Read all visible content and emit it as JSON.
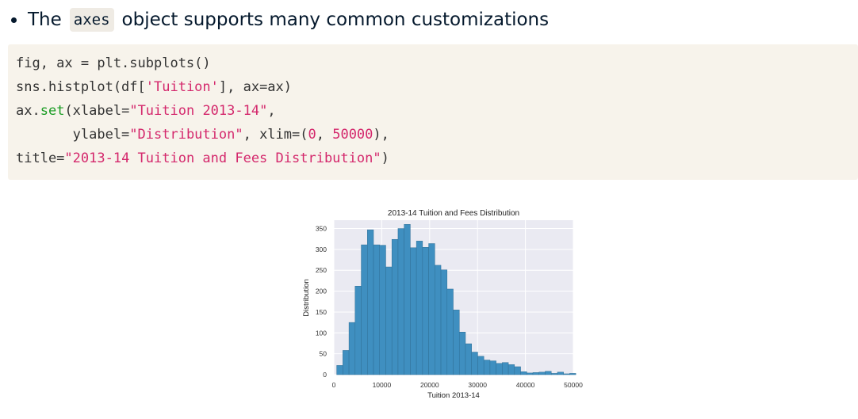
{
  "bullet": {
    "pre": "The",
    "code": "axes",
    "post": "object supports many common customizations"
  },
  "code": {
    "l1": "fig, ax = plt.subplots()",
    "l2a": "sns.histplot(df[",
    "l2b": "'Tuition'",
    "l2c": "], ax=ax)",
    "l3a": "ax.",
    "l3b": "set",
    "l3c": "(xlabel=",
    "l3d": "\"Tuition 2013-14\"",
    "l3e": ",",
    "l4a": "       ylabel=",
    "l4b": "\"Distribution\"",
    "l4c": ", xlim=(",
    "l4d": "0",
    "l4e": ", ",
    "l4f": "50000",
    "l4g": "),",
    "l5a": "title=",
    "l5b": "\"2013-14 Tuition and Fees Distribution\"",
    "l5c": ")"
  },
  "chart_data": {
    "type": "bar",
    "title": "2013-14 Tuition and Fees Distribution",
    "xlabel": "Tuition 2013-14",
    "ylabel": "Distribution",
    "xlim": [
      0,
      50000
    ],
    "ylim": [
      0,
      370
    ],
    "bin_width": 1280,
    "bin_start": 600,
    "values": [
      22,
      58,
      125,
      212,
      311,
      347,
      311,
      310,
      258,
      324,
      350,
      360,
      304,
      320,
      305,
      314,
      262,
      251,
      205,
      155,
      102,
      74,
      54,
      44,
      35,
      33,
      27,
      29,
      24,
      19,
      7,
      4,
      5,
      6,
      8,
      3,
      6,
      2,
      3
    ],
    "xticks": [
      0,
      10000,
      20000,
      30000,
      40000,
      50000
    ],
    "yticks": [
      0,
      50,
      100,
      150,
      200,
      250,
      300,
      350
    ],
    "bar_color": "#3f8fc0",
    "bar_edge": "#2f6f96",
    "plot_bg": "#eaeaf2",
    "grid": true
  }
}
